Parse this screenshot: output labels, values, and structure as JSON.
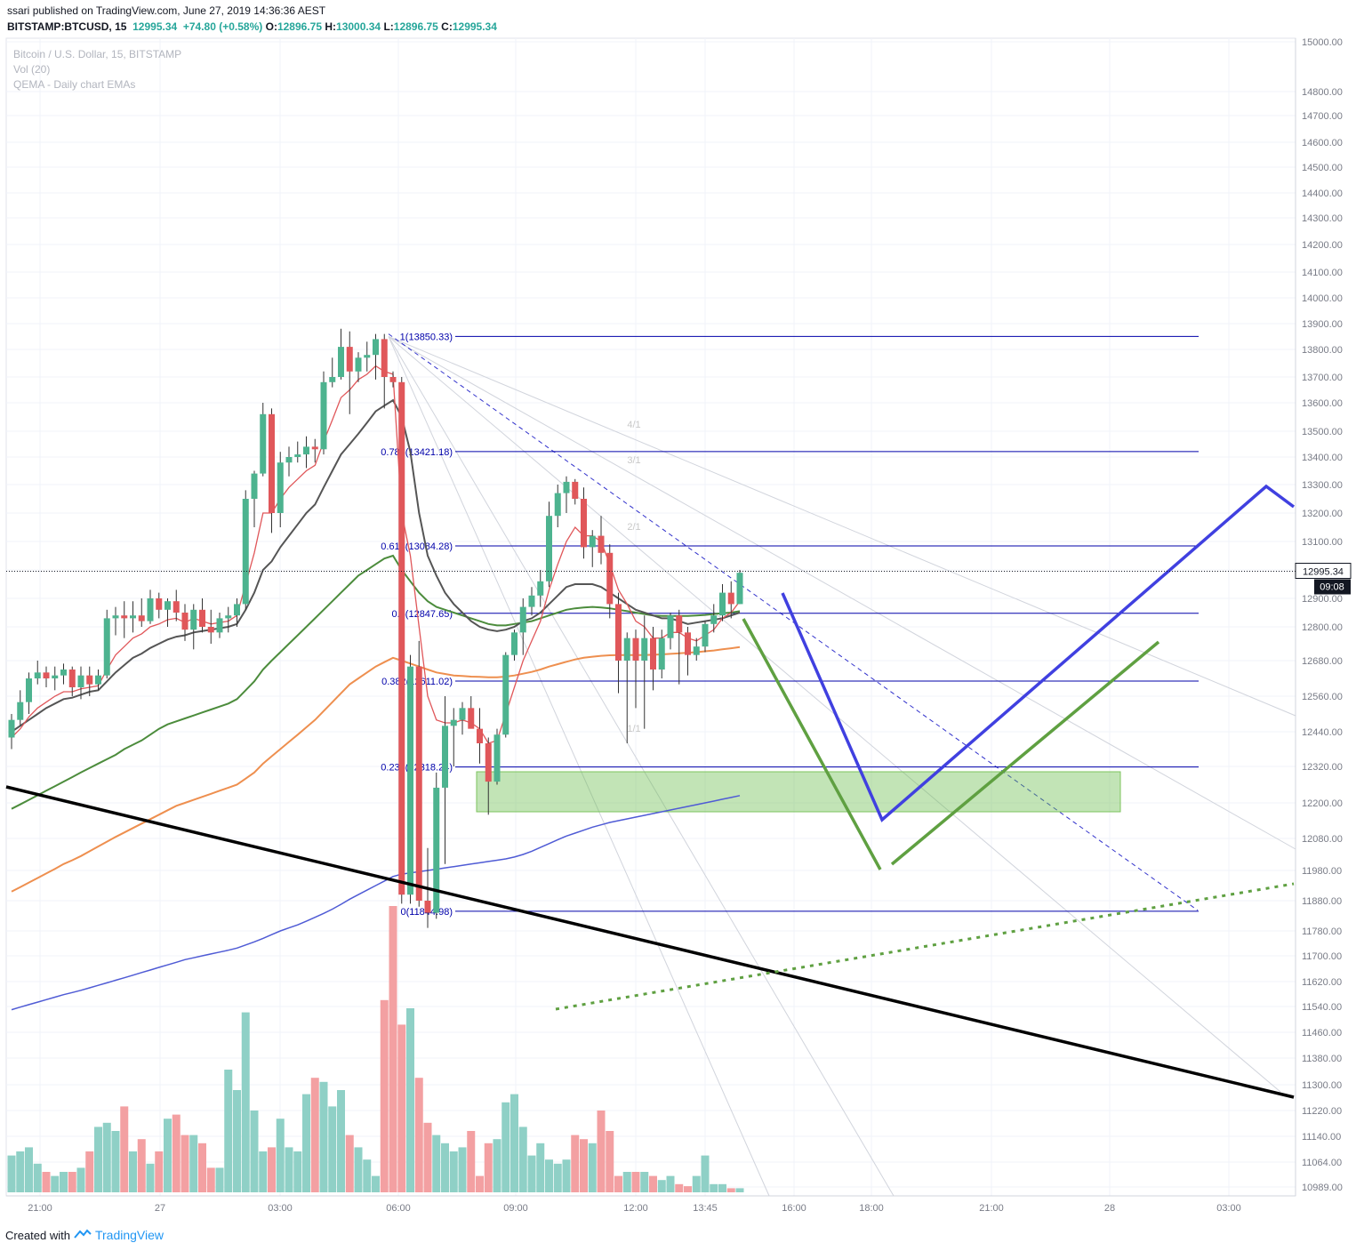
{
  "header": {
    "publisher": "ssari",
    "published_text": "published on TradingView.com, June 27, 2019 14:36:36 AEST",
    "symbol": "BITSTAMP:BTCUSD, 15",
    "last": "12995.34",
    "change": "+74.80 (+0.58%)",
    "o_label": "O:",
    "o": "12896.75",
    "h_label": "H:",
    "h": "13000.34",
    "l_label": "L:",
    "l": "12896.75",
    "c_label": "C:",
    "c": "12995.34"
  },
  "legend": {
    "title": "Bitcoin / U.S. Dollar, 15, BITSTAMP",
    "vol": "Vol (20)",
    "qema": "QEMA - Daily chart EMAs"
  },
  "footer": {
    "created_with": "Created with",
    "brand": "TradingView"
  },
  "price_label": "12995.34",
  "countdown_label": "09:08",
  "colors": {
    "up": "#4db38f",
    "down": "#e0575a",
    "vol_up": "#8fd0c6",
    "vol_down": "#f3a0a2",
    "ema_red": "#e0575a",
    "ema_dark": "#555555",
    "ema_green": "#4c8c3c",
    "ema_orange": "#ee8f4f",
    "ema_blue": "#4f5bd5",
    "fib": "#0000aa",
    "drawn_blue": "#4040e0",
    "drawn_green": "#5fa041",
    "support_zone": "rgba(102,187,73,0.4)"
  },
  "chart_data": {
    "type": "candlestick",
    "title": "Bitcoin / U.S. Dollar, 15, BITSTAMP",
    "y_axis": {
      "ticks": [
        10989,
        11064,
        11140,
        11220,
        11300,
        11380,
        11460,
        11540,
        11620,
        11700,
        11780,
        11880,
        11980,
        12080,
        12200,
        12320,
        12440,
        12560,
        12680,
        12800,
        12900,
        13000,
        13100,
        13200,
        13300,
        13400,
        13500,
        13600,
        13700,
        13800,
        13900,
        14000,
        14100,
        14200,
        14300,
        14400,
        14500,
        14600,
        14700,
        14800,
        15000
      ],
      "tick_labels": [
        "10989.00",
        "11064.00",
        "11140.00",
        "11220.00",
        "11300.00",
        "11380.00",
        "11460.00",
        "11540.00",
        "11620.00",
        "11700.00",
        "11780.00",
        "11880.00",
        "11980.00",
        "12080.00",
        "12200.00",
        "12320.00",
        "12440.00",
        "12560.00",
        "12680.00",
        "12800.00",
        "12900.00",
        "13000.00",
        "13100.00",
        "13200.00",
        "13300.00",
        "13400.00",
        "13500.00",
        "13600.00",
        "13700.00",
        "13800.00",
        "13900.00",
        "14000.00",
        "14100.00",
        "14200.00",
        "14300.00",
        "14400.00",
        "14500.00",
        "14600.00",
        "14700.00",
        "14800.00",
        "15000.00"
      ]
    },
    "x_axis": {
      "tick_labels": [
        "21:00",
        "27",
        "03:00",
        "06:00",
        "09:00",
        "12:00",
        "13:45",
        "16:00",
        "18:00",
        "21:00",
        "28",
        "03:00"
      ]
    },
    "last_price": 12995.34,
    "candles": [
      {
        "o": 12420,
        "h": 12500,
        "l": 12380,
        "c": 12480
      },
      {
        "o": 12480,
        "h": 12580,
        "l": 12460,
        "c": 12540
      },
      {
        "o": 12540,
        "h": 12640,
        "l": 12500,
        "c": 12620
      },
      {
        "o": 12620,
        "h": 12680,
        "l": 12600,
        "c": 12640
      },
      {
        "o": 12640,
        "h": 12660,
        "l": 12590,
        "c": 12620
      },
      {
        "o": 12620,
        "h": 12660,
        "l": 12580,
        "c": 12630
      },
      {
        "o": 12630,
        "h": 12670,
        "l": 12600,
        "c": 12650
      },
      {
        "o": 12650,
        "h": 12660,
        "l": 12560,
        "c": 12590
      },
      {
        "o": 12590,
        "h": 12660,
        "l": 12550,
        "c": 12630
      },
      {
        "o": 12630,
        "h": 12660,
        "l": 12560,
        "c": 12600
      },
      {
        "o": 12600,
        "h": 12650,
        "l": 12580,
        "c": 12630
      },
      {
        "o": 12630,
        "h": 12860,
        "l": 12620,
        "c": 12830
      },
      {
        "o": 12830,
        "h": 12870,
        "l": 12770,
        "c": 12840
      },
      {
        "o": 12840,
        "h": 12890,
        "l": 12760,
        "c": 12830
      },
      {
        "o": 12830,
        "h": 12890,
        "l": 12780,
        "c": 12840
      },
      {
        "o": 12840,
        "h": 12900,
        "l": 12800,
        "c": 12820
      },
      {
        "o": 12820,
        "h": 12930,
        "l": 12810,
        "c": 12900
      },
      {
        "o": 12900,
        "h": 12920,
        "l": 12830,
        "c": 12860
      },
      {
        "o": 12860,
        "h": 12900,
        "l": 12800,
        "c": 12890
      },
      {
        "o": 12890,
        "h": 12930,
        "l": 12820,
        "c": 12850
      },
      {
        "o": 12850,
        "h": 12880,
        "l": 12750,
        "c": 12790
      },
      {
        "o": 12790,
        "h": 12880,
        "l": 12720,
        "c": 12860
      },
      {
        "o": 12860,
        "h": 12900,
        "l": 12780,
        "c": 12800
      },
      {
        "o": 12800,
        "h": 12860,
        "l": 12740,
        "c": 12780
      },
      {
        "o": 12780,
        "h": 12850,
        "l": 12760,
        "c": 12830
      },
      {
        "o": 12830,
        "h": 12870,
        "l": 12780,
        "c": 12840
      },
      {
        "o": 12840,
        "h": 12900,
        "l": 12800,
        "c": 12880
      },
      {
        "o": 12880,
        "h": 13280,
        "l": 12860,
        "c": 13250
      },
      {
        "o": 13250,
        "h": 13350,
        "l": 13150,
        "c": 13340
      },
      {
        "o": 13340,
        "h": 13600,
        "l": 13330,
        "c": 13560
      },
      {
        "o": 13560,
        "h": 13580,
        "l": 13130,
        "c": 13200
      },
      {
        "o": 13200,
        "h": 13420,
        "l": 13150,
        "c": 13380
      },
      {
        "o": 13380,
        "h": 13440,
        "l": 13330,
        "c": 13400
      },
      {
        "o": 13400,
        "h": 13460,
        "l": 13380,
        "c": 13410
      },
      {
        "o": 13410,
        "h": 13480,
        "l": 13360,
        "c": 13440
      },
      {
        "o": 13440,
        "h": 13470,
        "l": 13380,
        "c": 13430
      },
      {
        "o": 13430,
        "h": 13720,
        "l": 13410,
        "c": 13680
      },
      {
        "o": 13680,
        "h": 13770,
        "l": 13660,
        "c": 13700
      },
      {
        "o": 13700,
        "h": 13880,
        "l": 13690,
        "c": 13810
      },
      {
        "o": 13810,
        "h": 13870,
        "l": 13560,
        "c": 13720
      },
      {
        "o": 13720,
        "h": 13790,
        "l": 13680,
        "c": 13770
      },
      {
        "o": 13770,
        "h": 13830,
        "l": 13720,
        "c": 13780
      },
      {
        "o": 13780,
        "h": 13860,
        "l": 13690,
        "c": 13840
      },
      {
        "o": 13840,
        "h": 13860,
        "l": 13580,
        "c": 13700
      },
      {
        "o": 13700,
        "h": 13720,
        "l": 13660,
        "c": 13680
      },
      {
        "o": 13680,
        "h": 13700,
        "l": 11870,
        "c": 11900
      },
      {
        "o": 11900,
        "h": 12700,
        "l": 11870,
        "c": 12660
      },
      {
        "o": 12660,
        "h": 12750,
        "l": 11860,
        "c": 11880
      },
      {
        "o": 11880,
        "h": 12050,
        "l": 11790,
        "c": 11840
      },
      {
        "o": 11840,
        "h": 12300,
        "l": 11820,
        "c": 12250
      },
      {
        "o": 12250,
        "h": 12560,
        "l": 12000,
        "c": 12460
      },
      {
        "o": 12460,
        "h": 12520,
        "l": 12320,
        "c": 12480
      },
      {
        "o": 12480,
        "h": 12540,
        "l": 12430,
        "c": 12520
      },
      {
        "o": 12520,
        "h": 12560,
        "l": 12470,
        "c": 12450
      },
      {
        "o": 12450,
        "h": 12520,
        "l": 12330,
        "c": 12400
      },
      {
        "o": 12400,
        "h": 12420,
        "l": 12160,
        "c": 12270
      },
      {
        "o": 12270,
        "h": 12450,
        "l": 12260,
        "c": 12430
      },
      {
        "o": 12430,
        "h": 12710,
        "l": 12420,
        "c": 12700
      },
      {
        "o": 12700,
        "h": 12790,
        "l": 12680,
        "c": 12780
      },
      {
        "o": 12780,
        "h": 12900,
        "l": 12700,
        "c": 12870
      },
      {
        "o": 12870,
        "h": 12940,
        "l": 12840,
        "c": 12910
      },
      {
        "o": 12910,
        "h": 13000,
        "l": 12870,
        "c": 12960
      },
      {
        "o": 12960,
        "h": 13240,
        "l": 12940,
        "c": 13190
      },
      {
        "o": 13190,
        "h": 13300,
        "l": 13150,
        "c": 13270
      },
      {
        "o": 13270,
        "h": 13330,
        "l": 13200,
        "c": 13310
      },
      {
        "o": 13310,
        "h": 13320,
        "l": 13230,
        "c": 13250
      },
      {
        "o": 13250,
        "h": 13290,
        "l": 13040,
        "c": 13080
      },
      {
        "o": 13080,
        "h": 13140,
        "l": 13010,
        "c": 13120
      },
      {
        "o": 13120,
        "h": 13190,
        "l": 13020,
        "c": 13060
      },
      {
        "o": 13060,
        "h": 13090,
        "l": 12830,
        "c": 12880
      },
      {
        "o": 12880,
        "h": 12920,
        "l": 12570,
        "c": 12680
      },
      {
        "o": 12680,
        "h": 12780,
        "l": 12400,
        "c": 12760
      },
      {
        "o": 12760,
        "h": 12790,
        "l": 12520,
        "c": 12680
      },
      {
        "o": 12680,
        "h": 12840,
        "l": 12450,
        "c": 12760
      },
      {
        "o": 12760,
        "h": 12800,
        "l": 12580,
        "c": 12650
      },
      {
        "o": 12650,
        "h": 12790,
        "l": 12620,
        "c": 12760
      },
      {
        "o": 12760,
        "h": 12850,
        "l": 12720,
        "c": 12840
      },
      {
        "o": 12840,
        "h": 12860,
        "l": 12600,
        "c": 12780
      },
      {
        "o": 12780,
        "h": 12800,
        "l": 12630,
        "c": 12700
      },
      {
        "o": 12700,
        "h": 12760,
        "l": 12680,
        "c": 12730
      },
      {
        "o": 12730,
        "h": 12820,
        "l": 12710,
        "c": 12810
      },
      {
        "o": 12810,
        "h": 12880,
        "l": 12780,
        "c": 12840
      },
      {
        "o": 12840,
        "h": 12950,
        "l": 12820,
        "c": 12920
      },
      {
        "o": 12920,
        "h": 12960,
        "l": 12830,
        "c": 12880
      },
      {
        "o": 12880,
        "h": 13000,
        "l": 12880,
        "c": 12990
      }
    ],
    "volume_relative": [
      0.18,
      0.2,
      0.22,
      0.14,
      0.1,
      0.08,
      0.1,
      0.1,
      0.12,
      0.2,
      0.32,
      0.34,
      0.3,
      0.42,
      0.2,
      0.26,
      0.14,
      0.2,
      0.36,
      0.38,
      0.28,
      0.28,
      0.24,
      0.12,
      0.12,
      0.6,
      0.5,
      0.88,
      0.4,
      0.2,
      0.22,
      0.36,
      0.22,
      0.2,
      0.48,
      0.56,
      0.54,
      0.42,
      0.5,
      0.28,
      0.22,
      0.16,
      0.08,
      0.94,
      1.4,
      0.82,
      0.9,
      0.56,
      0.34,
      0.28,
      0.24,
      0.2,
      0.22,
      0.3,
      0.08,
      0.24,
      0.26,
      0.44,
      0.48,
      0.32,
      0.18,
      0.24,
      0.16,
      0.14,
      0.16,
      0.28,
      0.26,
      0.24,
      0.4,
      0.3,
      0.08,
      0.1,
      0.1,
      0.1,
      0.08,
      0.06,
      0.08,
      0.04,
      0.03,
      0.08,
      0.18,
      0.04,
      0.04,
      0.02,
      0.02
    ],
    "ema_fast": [
      12420,
      12450,
      12490,
      12520,
      12540,
      12560,
      12575,
      12575,
      12585,
      12590,
      12595,
      12650,
      12700,
      12730,
      12760,
      12775,
      12800,
      12810,
      12825,
      12830,
      12815,
      12830,
      12820,
      12810,
      12815,
      12820,
      12840,
      12950,
      13060,
      13200,
      13200,
      13250,
      13290,
      13320,
      13350,
      13370,
      13460,
      13540,
      13620,
      13650,
      13690,
      13710,
      13740,
      13720,
      13710,
      13200,
      13050,
      12800,
      12560,
      12480,
      12470,
      12470,
      12480,
      12470,
      12450,
      12400,
      12410,
      12500,
      12590,
      12680,
      12750,
      12820,
      12930,
      13020,
      13100,
      13150,
      13120,
      13120,
      13100,
      13020,
      12930,
      12880,
      12820,
      12800,
      12760,
      12760,
      12780,
      12780,
      12760,
      12750,
      12770,
      12790,
      12830,
      12850,
      12890
    ],
    "ema_slow": [
      12440,
      12460,
      12480,
      12500,
      12520,
      12535,
      12550,
      12555,
      12565,
      12575,
      12580,
      12610,
      12640,
      12665,
      12690,
      12705,
      12725,
      12740,
      12755,
      12765,
      12770,
      12780,
      12785,
      12790,
      12795,
      12800,
      12810,
      12860,
      12920,
      13000,
      13030,
      13080,
      13120,
      13160,
      13200,
      13230,
      13290,
      13350,
      13410,
      13450,
      13490,
      13530,
      13570,
      13590,
      13610,
      13550,
      13420,
      13200,
      13050,
      12980,
      12920,
      12880,
      12850,
      12820,
      12800,
      12790,
      12785,
      12790,
      12800,
      12820,
      12830,
      12850,
      12880,
      12910,
      12940,
      12950,
      12950,
      12950,
      12940,
      12920,
      12900,
      12880,
      12860,
      12850,
      12840,
      12830,
      12830,
      12820,
      12810,
      12815,
      12820,
      12825,
      12830,
      12840,
      12850
    ],
    "ema_green": [
      12180,
      12195,
      12210,
      12225,
      12240,
      12255,
      12270,
      12285,
      12300,
      12315,
      12330,
      12345,
      12360,
      12380,
      12395,
      12410,
      12430,
      12450,
      12465,
      12475,
      12485,
      12495,
      12505,
      12515,
      12525,
      12535,
      12550,
      12580,
      12610,
      12650,
      12680,
      12710,
      12740,
      12770,
      12800,
      12830,
      12860,
      12890,
      12920,
      12950,
      12980,
      13000,
      13020,
      13040,
      13050,
      13000,
      12960,
      12920,
      12890,
      12870,
      12860,
      12850,
      12840,
      12830,
      12820,
      12810,
      12805,
      12805,
      12810,
      12815,
      12820,
      12830,
      12840,
      12850,
      12860,
      12865,
      12868,
      12870,
      12868,
      12865,
      12860,
      12855,
      12850,
      12845,
      12840,
      12838,
      12838,
      12838,
      12838,
      12840,
      12842,
      12845,
      12848,
      12850,
      12855
    ],
    "ema_orange": [
      11910,
      11925,
      11940,
      11955,
      11970,
      11985,
      12000,
      12012,
      12025,
      12040,
      12055,
      12070,
      12085,
      12100,
      12115,
      12130,
      12145,
      12160,
      12175,
      12190,
      12200,
      12210,
      12220,
      12230,
      12240,
      12250,
      12260,
      12280,
      12300,
      12330,
      12355,
      12380,
      12405,
      12430,
      12455,
      12480,
      12510,
      12540,
      12570,
      12600,
      12620,
      12640,
      12660,
      12675,
      12690,
      12680,
      12670,
      12660,
      12650,
      12640,
      12635,
      12630,
      12628,
      12626,
      12625,
      12624,
      12624,
      12626,
      12630,
      12636,
      12642,
      12650,
      12660,
      12668,
      12676,
      12684,
      12690,
      12694,
      12697,
      12699,
      12700,
      12700,
      12700,
      12700,
      12701,
      12702,
      12704,
      12706,
      12708,
      12710,
      12713,
      12716,
      12720,
      12724,
      12728
    ],
    "ema_blue": [
      11530,
      11538,
      11546,
      11554,
      11562,
      11570,
      11578,
      11585,
      11592,
      11600,
      11608,
      11616,
      11624,
      11632,
      11640,
      11648,
      11656,
      11664,
      11672,
      11680,
      11688,
      11694,
      11700,
      11706,
      11712,
      11718,
      11725,
      11735,
      11745,
      11756,
      11768,
      11780,
      11790,
      11800,
      11812,
      11825,
      11838,
      11852,
      11868,
      11885,
      11900,
      11915,
      11930,
      11945,
      11960,
      11968,
      11972,
      11976,
      11980,
      11984,
      11988,
      11992,
      11996,
      12000,
      12004,
      12008,
      12012,
      12016,
      12022,
      12030,
      12040,
      12052,
      12064,
      12076,
      12088,
      12098,
      12108,
      12118,
      12126,
      12134,
      12140,
      12146,
      12152,
      12158,
      12164,
      12170,
      12176,
      12182,
      12188,
      12194,
      12200,
      12206,
      12212,
      12218,
      12224
    ],
    "fib_levels": [
      {
        "ratio": "1",
        "price": "13850.33"
      },
      {
        "ratio": "0.786",
        "price": "13421.18"
      },
      {
        "ratio": "0.618",
        "price": "13084.28"
      },
      {
        "ratio": "0.5",
        "price": "12847.65"
      },
      {
        "ratio": "0.382",
        "price": "12611.02"
      },
      {
        "ratio": "0.236",
        "price": "12318.24"
      },
      {
        "ratio": "0",
        "price": "11844.98"
      }
    ],
    "fan_labels": [
      "4/1",
      "3/1",
      "2/1",
      "1/1"
    ]
  }
}
